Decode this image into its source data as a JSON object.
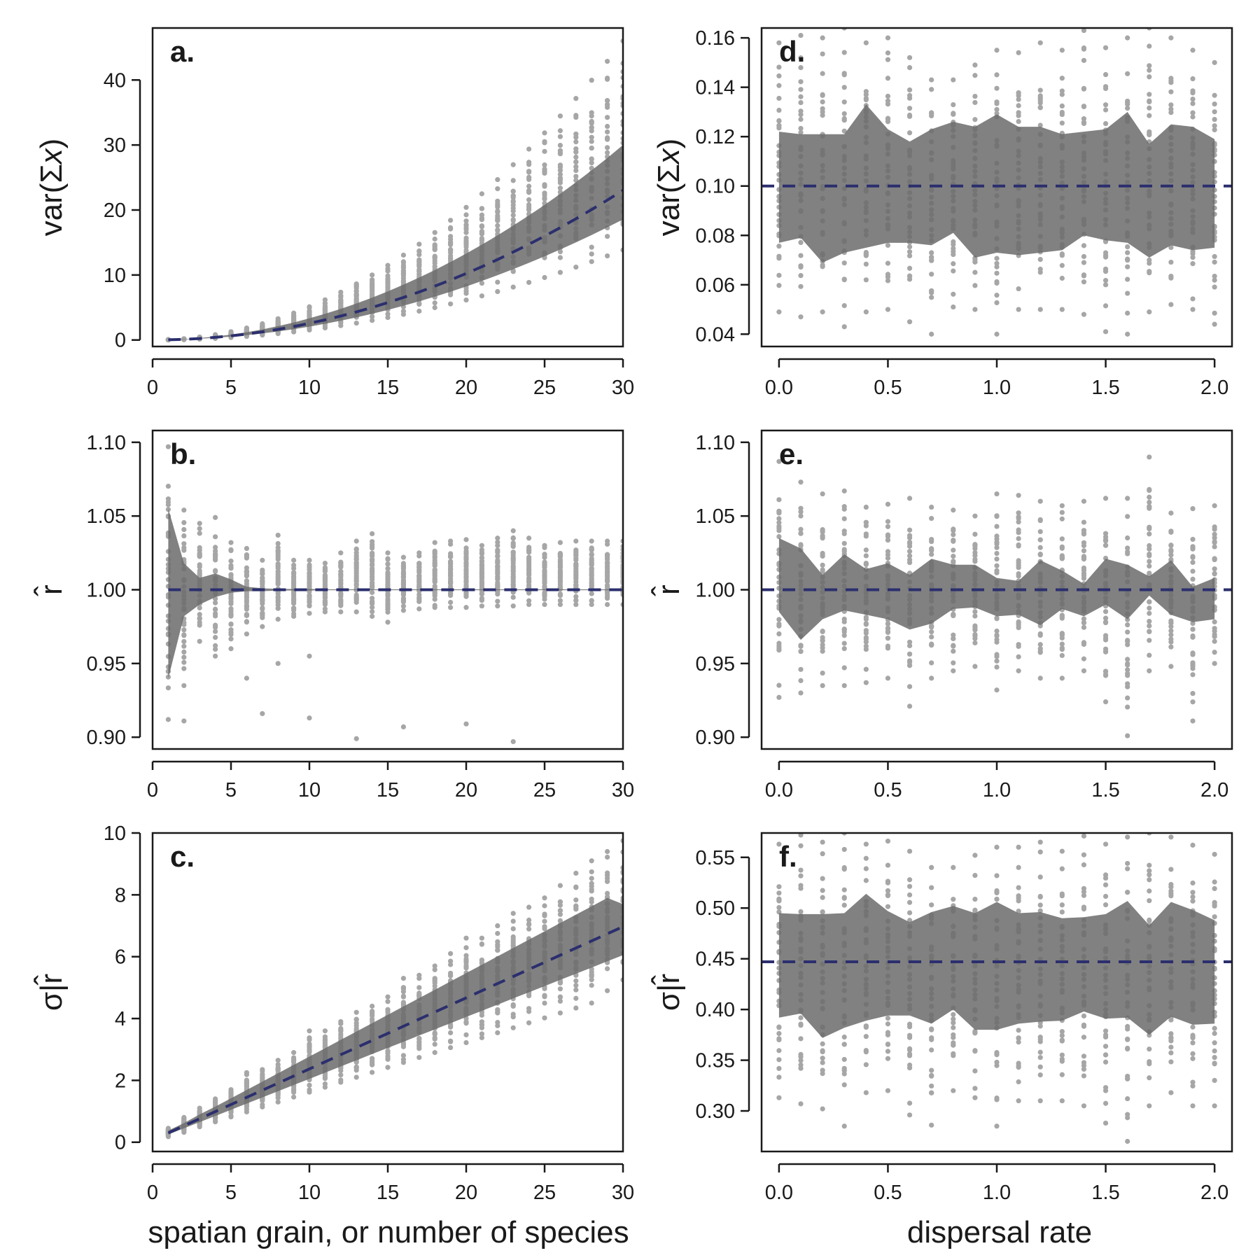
{
  "figure": {
    "xlabel_left": "spatian grain, or number of species",
    "xlabel_right": "dispersal rate"
  },
  "colors": {
    "points": "#a6a6a6",
    "band": "#6b6b6b",
    "mean_line": "#2b2f6e",
    "axis": "#1a1a1a"
  },
  "chart_data": [
    {
      "id": "a",
      "type": "scatter",
      "panel_label": "a.",
      "ylabel_parts": [
        "var(Σ",
        "x",
        ")"
      ],
      "xlim": [
        0,
        30
      ],
      "ylim": [
        -1,
        48
      ],
      "xticks": [
        0,
        5,
        10,
        15,
        20,
        25,
        30
      ],
      "xtick_labels": [
        "0",
        "5",
        "10",
        "15",
        "20",
        "25",
        "30"
      ],
      "yticks": [
        0,
        10,
        20,
        30,
        40
      ],
      "ytick_labels": [
        "0",
        "10",
        "20",
        "30",
        "40"
      ],
      "x": [
        1,
        2,
        3,
        4,
        5,
        6,
        7,
        8,
        9,
        10,
        11,
        12,
        13,
        14,
        15,
        16,
        17,
        18,
        19,
        20,
        21,
        22,
        23,
        24,
        25,
        26,
        27,
        28,
        29,
        30
      ],
      "mean": [
        0.03,
        0.1,
        0.23,
        0.41,
        0.64,
        0.92,
        1.25,
        1.64,
        2.07,
        2.56,
        3.1,
        3.68,
        4.32,
        5.01,
        5.75,
        6.55,
        7.39,
        8.28,
        9.23,
        10.23,
        11.28,
        12.38,
        13.53,
        14.73,
        15.98,
        17.29,
        18.65,
        20.06,
        21.52,
        23.03
      ],
      "band_low": [
        0.02,
        0.08,
        0.19,
        0.33,
        0.52,
        0.74,
        1.01,
        1.32,
        1.67,
        2.06,
        2.5,
        2.97,
        3.48,
        4.03,
        4.63,
        5.27,
        5.95,
        6.67,
        7.43,
        8.24,
        9.08,
        9.97,
        10.9,
        11.87,
        12.88,
        13.93,
        15.02,
        16.15,
        17.33,
        18.55
      ],
      "band_high": [
        0.05,
        0.13,
        0.3,
        0.53,
        0.83,
        1.2,
        1.63,
        2.13,
        2.69,
        3.33,
        4.03,
        4.79,
        5.62,
        6.52,
        7.48,
        8.52,
        9.61,
        10.77,
        12.0,
        13.3,
        14.67,
        16.1,
        17.6,
        19.16,
        20.79,
        22.49,
        24.26,
        26.1,
        28.0,
        30.0
      ],
      "scatter_min": [
        0.01,
        0.05,
        0.13,
        0.24,
        0.38,
        0.55,
        0.75,
        0.98,
        1.24,
        1.54,
        1.86,
        2.21,
        2.6,
        3.01,
        3.46,
        3.94,
        4.44,
        4.98,
        5.55,
        6.15,
        6.78,
        7.45,
        8.14,
        8.86,
        9.61,
        10.4,
        11.21,
        12.06,
        12.94,
        13.84
      ],
      "scatter_max": [
        0.07,
        0.2,
        0.46,
        0.82,
        1.28,
        1.84,
        2.5,
        3.27,
        4.14,
        5.11,
        6.18,
        7.35,
        8.63,
        10.0,
        11.48,
        13.06,
        14.74,
        16.53,
        18.41,
        20.4,
        22.49,
        24.68,
        26.97,
        29.37,
        31.86,
        34.46,
        37.16,
        39.96,
        42.87,
        46.0
      ],
      "mean_value": null,
      "mean_style": "dashed"
    },
    {
      "id": "b",
      "type": "scatter",
      "panel_label": "b.",
      "ylabel_parts": [
        "r̂"
      ],
      "xlim": [
        0,
        30
      ],
      "ylim": [
        0.892,
        1.108
      ],
      "xticks": [
        0,
        5,
        10,
        15,
        20,
        25,
        30
      ],
      "xtick_labels": [
        "0",
        "5",
        "10",
        "15",
        "20",
        "25",
        "30"
      ],
      "yticks": [
        0.9,
        0.95,
        1.0,
        1.05,
        1.1
      ],
      "ytick_labels": [
        "0.90",
        "0.95",
        "1.00",
        "1.05",
        "1.10"
      ],
      "x": [
        1,
        2,
        3,
        4,
        5,
        6,
        7,
        8,
        9,
        10,
        11,
        12,
        13,
        14,
        15,
        16,
        17,
        18,
        19,
        20,
        21,
        22,
        23,
        24,
        25,
        26,
        27,
        28,
        29,
        30
      ],
      "mean": [
        1.0,
        1.0,
        1.0,
        1.0,
        1.0,
        1.0,
        1.0,
        1.0,
        1.0,
        1.0,
        1.0,
        1.0,
        1.0,
        1.0,
        1.0,
        1.0,
        1.0,
        1.0,
        1.0,
        1.0,
        1.0,
        1.0,
        1.0,
        1.0,
        1.0,
        1.0,
        1.0,
        1.0,
        1.0,
        1.0
      ],
      "band_low": [
        0.94,
        0.982,
        0.99,
        0.995,
        0.998,
        0.999,
        0.999,
        0.9995,
        0.9995,
        0.9995,
        0.9997,
        0.9997,
        0.9997,
        0.9997,
        0.9997,
        0.9997,
        0.9997,
        0.9997,
        0.9997,
        0.9997,
        0.9997,
        0.9997,
        0.9997,
        0.9997,
        0.9997,
        0.9997,
        0.9997,
        0.9997,
        0.9997,
        0.9997
      ],
      "band_high": [
        1.055,
        1.018,
        1.008,
        1.011,
        1.007,
        1.002,
        1.001,
        1.0005,
        1.0005,
        1.0005,
        1.0003,
        1.0003,
        1.0003,
        1.0003,
        1.0003,
        1.0003,
        1.0003,
        1.0003,
        1.0003,
        1.0003,
        1.0003,
        1.0003,
        1.0003,
        1.0003,
        1.0003,
        1.0003,
        1.0003,
        1.0003,
        1.0003,
        1.0003
      ],
      "scatter_min": [
        0.912,
        0.935,
        0.965,
        0.955,
        0.96,
        0.97,
        0.975,
        0.98,
        0.982,
        0.984,
        0.985,
        0.985,
        0.985,
        0.982,
        0.978,
        0.986,
        0.987,
        0.988,
        0.988,
        0.988,
        0.989,
        0.989,
        0.989,
        0.99,
        0.99,
        0.99,
        0.99,
        0.99,
        0.99,
        0.99
      ],
      "scatter_max": [
        1.097,
        1.054,
        1.045,
        1.049,
        1.032,
        1.028,
        1.02,
        1.037,
        1.02,
        1.02,
        1.018,
        1.025,
        1.033,
        1.038,
        1.025,
        1.022,
        1.025,
        1.032,
        1.033,
        1.034,
        1.03,
        1.035,
        1.04,
        1.035,
        1.03,
        1.032,
        1.033,
        1.033,
        1.033,
        1.033
      ],
      "outliers": [
        [
          2,
          0.911
        ],
        [
          6,
          0.94
        ],
        [
          7,
          0.916
        ],
        [
          8,
          0.95
        ],
        [
          10,
          0.913
        ],
        [
          10,
          0.955
        ],
        [
          13,
          0.899
        ],
        [
          16,
          0.907
        ],
        [
          20,
          0.909
        ],
        [
          23,
          0.897
        ]
      ],
      "mean_value": 1.0,
      "mean_style": "dashed"
    },
    {
      "id": "c",
      "type": "scatter",
      "panel_label": "c.",
      "ylabel_parts": [
        "σ|r̂"
      ],
      "xlim": [
        0,
        30
      ],
      "ylim": [
        -0.3,
        10.0
      ],
      "xticks": [
        0,
        5,
        10,
        15,
        20,
        25,
        30
      ],
      "xtick_labels": [
        "0",
        "5",
        "10",
        "15",
        "20",
        "25",
        "30"
      ],
      "yticks": [
        0,
        2,
        4,
        6,
        8,
        10
      ],
      "ytick_labels": [
        "0",
        "2",
        "4",
        "6",
        "8",
        "10"
      ],
      "x": [
        1,
        2,
        3,
        4,
        5,
        6,
        7,
        8,
        9,
        10,
        11,
        12,
        13,
        14,
        15,
        16,
        17,
        18,
        19,
        20,
        21,
        22,
        23,
        24,
        25,
        26,
        27,
        28,
        29,
        30
      ],
      "mean": [
        0.3,
        0.53,
        0.76,
        0.99,
        1.22,
        1.45,
        1.68,
        1.91,
        2.14,
        2.37,
        2.6,
        2.83,
        3.06,
        3.29,
        3.52,
        3.75,
        3.98,
        4.21,
        4.44,
        4.67,
        4.9,
        5.13,
        5.36,
        5.59,
        5.82,
        6.05,
        6.28,
        6.51,
        6.74,
        6.97
      ],
      "band_low": [
        0.25,
        0.45,
        0.65,
        0.85,
        1.05,
        1.25,
        1.45,
        1.65,
        1.85,
        2.05,
        2.25,
        2.45,
        2.65,
        2.85,
        3.05,
        3.25,
        3.45,
        3.65,
        3.85,
        4.05,
        4.25,
        4.45,
        4.65,
        4.85,
        5.05,
        5.25,
        5.45,
        5.65,
        5.85,
        6.05
      ],
      "band_high": [
        0.38,
        0.62,
        0.9,
        1.15,
        1.42,
        1.69,
        1.96,
        2.23,
        2.5,
        2.77,
        3.04,
        3.31,
        3.58,
        3.85,
        4.12,
        4.39,
        4.66,
        4.93,
        5.2,
        5.47,
        5.74,
        6.01,
        6.28,
        6.55,
        6.82,
        7.09,
        7.36,
        7.63,
        7.9,
        7.7
      ],
      "scatter_min": [
        0.18,
        0.32,
        0.5,
        0.66,
        0.82,
        0.98,
        1.14,
        1.3,
        1.46,
        1.62,
        1.78,
        1.94,
        2.1,
        2.26,
        2.42,
        2.58,
        2.74,
        2.9,
        3.06,
        3.22,
        3.38,
        3.54,
        3.7,
        3.86,
        4.02,
        4.18,
        4.34,
        4.5,
        4.9,
        5.25
      ],
      "scatter_max": [
        0.45,
        0.8,
        1.1,
        1.4,
        1.7,
        2.25,
        2.35,
        2.65,
        2.9,
        3.6,
        3.6,
        3.9,
        4.2,
        4.4,
        4.7,
        5.3,
        5.4,
        5.7,
        6.1,
        6.6,
        6.6,
        7.0,
        7.4,
        7.6,
        7.9,
        8.3,
        8.7,
        9.1,
        9.4,
        9.75
      ],
      "mean_value": null,
      "mean_style": "dashed"
    },
    {
      "id": "d",
      "type": "scatter",
      "panel_label": "d.",
      "ylabel_parts": [
        "var(Σ",
        "x",
        ")"
      ],
      "xlim": [
        -0.08,
        2.08
      ],
      "ylim": [
        0.035,
        0.164
      ],
      "xticks": [
        0.0,
        0.5,
        1.0,
        1.5,
        2.0
      ],
      "xtick_labels": [
        "0.0",
        "0.5",
        "1.0",
        "1.5",
        "2.0"
      ],
      "yticks": [
        0.04,
        0.06,
        0.08,
        0.1,
        0.12,
        0.14,
        0.16
      ],
      "ytick_labels": [
        "0.04",
        "0.06",
        "0.08",
        "0.10",
        "0.12",
        "0.14",
        "0.16"
      ],
      "x": [
        0.0,
        0.1,
        0.2,
        0.3,
        0.4,
        0.5,
        0.6,
        0.7,
        0.8,
        0.9,
        1.0,
        1.1,
        1.2,
        1.3,
        1.4,
        1.5,
        1.6,
        1.7,
        1.8,
        1.9,
        2.0
      ],
      "mean": null,
      "band_low": [
        0.077,
        0.079,
        0.069,
        0.073,
        0.075,
        0.077,
        0.077,
        0.076,
        0.081,
        0.071,
        0.073,
        0.072,
        0.073,
        0.074,
        0.08,
        0.078,
        0.077,
        0.071,
        0.076,
        0.074,
        0.075
      ],
      "band_high": [
        0.122,
        0.121,
        0.121,
        0.121,
        0.133,
        0.123,
        0.118,
        0.123,
        0.126,
        0.124,
        0.129,
        0.124,
        0.124,
        0.121,
        0.122,
        0.123,
        0.13,
        0.117,
        0.125,
        0.124,
        0.119
      ],
      "scatter_min": [
        0.049,
        0.047,
        0.049,
        0.043,
        0.049,
        0.05,
        0.045,
        0.04,
        0.051,
        0.05,
        0.04,
        0.05,
        0.05,
        0.05,
        0.048,
        0.041,
        0.04,
        0.049,
        0.052,
        0.05,
        0.044
      ],
      "scatter_max": [
        0.158,
        0.161,
        0.16,
        0.164,
        0.158,
        0.16,
        0.152,
        0.143,
        0.143,
        0.149,
        0.155,
        0.154,
        0.158,
        0.155,
        0.163,
        0.156,
        0.16,
        0.164,
        0.16,
        0.155,
        0.15
      ],
      "mean_value": 0.1,
      "mean_style": "dashed"
    },
    {
      "id": "e",
      "type": "scatter",
      "panel_label": "e.",
      "ylabel_parts": [
        "r̂"
      ],
      "xlim": [
        -0.08,
        2.08
      ],
      "ylim": [
        0.892,
        1.108
      ],
      "xticks": [
        0.0,
        0.5,
        1.0,
        1.5,
        2.0
      ],
      "xtick_labels": [
        "0.0",
        "0.5",
        "1.0",
        "1.5",
        "2.0"
      ],
      "yticks": [
        0.9,
        0.95,
        1.0,
        1.05,
        1.1
      ],
      "ytick_labels": [
        "0.90",
        "0.95",
        "1.00",
        "1.05",
        "1.10"
      ],
      "x": [
        0.0,
        0.1,
        0.2,
        0.3,
        0.4,
        0.5,
        0.6,
        0.7,
        0.8,
        0.9,
        1.0,
        1.1,
        1.2,
        1.3,
        1.4,
        1.5,
        1.6,
        1.7,
        1.8,
        1.9,
        2.0
      ],
      "mean": null,
      "band_low": [
        0.985,
        0.966,
        0.98,
        0.986,
        0.983,
        0.98,
        0.973,
        0.977,
        0.987,
        0.988,
        0.982,
        0.983,
        0.976,
        0.987,
        0.982,
        0.99,
        0.98,
        0.996,
        0.983,
        0.978,
        0.98
      ],
      "band_high": [
        1.035,
        1.028,
        1.01,
        1.024,
        1.014,
        1.018,
        1.01,
        1.021,
        1.017,
        1.017,
        1.008,
        1.006,
        1.02,
        1.013,
        1.004,
        1.021,
        1.017,
        1.009,
        1.02,
        1.002,
        1.008
      ],
      "scatter_min": [
        0.927,
        0.93,
        0.935,
        0.935,
        0.937,
        0.94,
        0.921,
        0.94,
        0.945,
        0.948,
        0.932,
        0.945,
        0.94,
        0.94,
        0.945,
        0.924,
        0.901,
        0.945,
        0.948,
        0.911,
        0.95
      ],
      "scatter_max": [
        1.087,
        1.073,
        1.065,
        1.067,
        1.056,
        1.058,
        1.062,
        1.056,
        1.054,
        1.05,
        1.065,
        1.064,
        1.06,
        1.057,
        1.06,
        1.062,
        1.062,
        1.09,
        1.052,
        1.055,
        1.057
      ],
      "mean_value": 1.0,
      "mean_style": "dashed"
    },
    {
      "id": "f",
      "type": "scatter",
      "panel_label": "f.",
      "ylabel_parts": [
        "σ|r̂"
      ],
      "xlim": [
        -0.08,
        2.08
      ],
      "ylim": [
        0.26,
        0.574
      ],
      "xticks": [
        0.0,
        0.5,
        1.0,
        1.5,
        2.0
      ],
      "xtick_labels": [
        "0.0",
        "0.5",
        "1.0",
        "1.5",
        "2.0"
      ],
      "yticks": [
        0.3,
        0.35,
        0.4,
        0.45,
        0.5,
        0.55
      ],
      "ytick_labels": [
        "0.30",
        "0.35",
        "0.40",
        "0.45",
        "0.50",
        "0.55"
      ],
      "x": [
        0.0,
        0.1,
        0.2,
        0.3,
        0.4,
        0.5,
        0.6,
        0.7,
        0.8,
        0.9,
        1.0,
        1.1,
        1.2,
        1.3,
        1.4,
        1.5,
        1.6,
        1.7,
        1.8,
        1.9,
        2.0
      ],
      "mean": null,
      "band_low": [
        0.392,
        0.396,
        0.372,
        0.382,
        0.389,
        0.394,
        0.394,
        0.386,
        0.4,
        0.38,
        0.38,
        0.386,
        0.388,
        0.389,
        0.398,
        0.391,
        0.392,
        0.375,
        0.393,
        0.385,
        0.386
      ],
      "band_high": [
        0.495,
        0.494,
        0.494,
        0.495,
        0.514,
        0.497,
        0.486,
        0.496,
        0.502,
        0.495,
        0.506,
        0.495,
        0.496,
        0.49,
        0.491,
        0.494,
        0.507,
        0.483,
        0.506,
        0.498,
        0.488
      ],
      "scatter_min": [
        0.313,
        0.307,
        0.302,
        0.285,
        0.318,
        0.32,
        0.296,
        0.286,
        0.32,
        0.313,
        0.285,
        0.31,
        0.31,
        0.31,
        0.305,
        0.288,
        0.27,
        0.305,
        0.318,
        0.305,
        0.305
      ],
      "scatter_max": [
        0.563,
        0.572,
        0.565,
        0.574,
        0.563,
        0.566,
        0.556,
        0.54,
        0.54,
        0.552,
        0.56,
        0.56,
        0.565,
        0.556,
        0.571,
        0.563,
        0.57,
        0.574,
        0.57,
        0.562,
        0.553
      ],
      "mean_value": 0.447,
      "mean_style": "dashed"
    }
  ]
}
